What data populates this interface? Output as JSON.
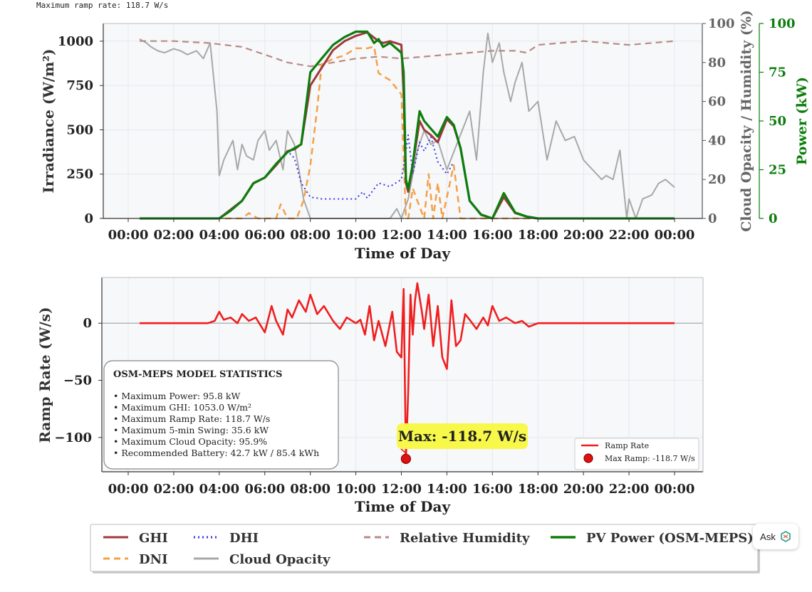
{
  "header": {
    "text": "Maximum ramp rate: 118.7 W/s"
  },
  "ask_button": {
    "label": "Ask"
  },
  "colors": {
    "ghi": "#a0383c",
    "dni": "#f5a046",
    "dhi": "#3a3ae0",
    "cloud": "#a8a8a8",
    "humidity": "#b98a85",
    "power": "#0d7d0d",
    "ramp": "#f01e1e",
    "highlight": "#f8f84a"
  },
  "chart_data": [
    {
      "type": "line",
      "xlabel": "Time of Day",
      "ylabel": "Irradiance (W/m²)",
      "ylabel2": "Cloud Opacity / Humidity (%)",
      "ylabel3": "Power (kW)",
      "xticks": [
        "00:00",
        "02:00",
        "04:00",
        "06:00",
        "08:00",
        "10:00",
        "12:00",
        "14:00",
        "16:00",
        "18:00",
        "20:00",
        "22:00",
        "00:00"
      ],
      "yticks": [
        "0",
        "250",
        "500",
        "750",
        "1000"
      ],
      "yticks2": [
        "0",
        "20",
        "40",
        "60",
        "80",
        "100"
      ],
      "yticks3": [
        "0",
        "25",
        "50",
        "75",
        "100"
      ],
      "ylim": [
        0,
        1100
      ],
      "ylim2": [
        0,
        100
      ],
      "ylim3": [
        0,
        100
      ],
      "series": [
        {
          "name": "GHI",
          "key": "ghi",
          "axis": "left",
          "x": [
            0.5,
            3.5,
            4.0,
            4.5,
            5.0,
            5.5,
            6.0,
            6.5,
            7.0,
            7.3,
            7.6,
            8.0,
            8.5,
            9.0,
            9.5,
            10.0,
            10.5,
            10.8,
            11.0,
            11.2,
            11.5,
            12.0,
            12.1,
            12.2,
            12.3,
            12.5,
            12.8,
            13.0,
            13.3,
            13.6,
            14.0,
            14.3,
            14.6,
            15.0,
            15.5,
            16.0,
            16.5,
            17.0,
            17.5,
            18.0,
            24.0
          ],
          "y": [
            0,
            0,
            0,
            50,
            100,
            200,
            230,
            300,
            380,
            390,
            420,
            750,
            850,
            950,
            1000,
            1030,
            1050,
            1020,
            1000,
            990,
            1000,
            980,
            700,
            200,
            150,
            300,
            550,
            500,
            470,
            430,
            560,
            520,
            400,
            100,
            20,
            0,
            120,
            30,
            10,
            0,
            0
          ]
        },
        {
          "name": "DNI",
          "key": "dni",
          "axis": "left",
          "x": [
            0.5,
            5.0,
            5.3,
            5.7,
            6.0,
            6.5,
            6.7,
            7.0,
            7.4,
            7.7,
            8.0,
            8.3,
            8.5,
            9.0,
            9.5,
            10.0,
            10.5,
            10.8,
            11.0,
            11.5,
            12.0,
            12.2,
            12.3,
            12.5,
            12.7,
            13.0,
            13.2,
            13.4,
            13.6,
            13.8,
            14.0,
            14.3,
            14.6,
            15.0,
            24.0
          ],
          "y": [
            0,
            0,
            30,
            0,
            0,
            0,
            80,
            0,
            0,
            100,
            300,
            620,
            870,
            900,
            920,
            960,
            960,
            970,
            820,
            780,
            700,
            0,
            0,
            170,
            100,
            0,
            250,
            0,
            200,
            0,
            120,
            300,
            0,
            0,
            0
          ]
        },
        {
          "name": "DHI",
          "key": "dhi",
          "axis": "left",
          "x": [
            6.5,
            7.0,
            7.3,
            7.6,
            8.0,
            8.3,
            8.5,
            9.0,
            9.5,
            10.0,
            10.3,
            10.5,
            11.0,
            11.5,
            12.0,
            12.2,
            12.3,
            12.5,
            12.8,
            13.0,
            13.3,
            13.6,
            14.0,
            14.3
          ],
          "y": [
            300,
            380,
            340,
            200,
            120,
            115,
            110,
            110,
            110,
            110,
            150,
            115,
            200,
            180,
            220,
            380,
            470,
            250,
            430,
            380,
            460,
            320,
            250,
            320
          ]
        },
        {
          "name": "Cloud Opacity",
          "key": "cloud",
          "axis": "right",
          "x": [
            0.5,
            0.8,
            1.0,
            1.3,
            1.6,
            2.0,
            2.3,
            2.6,
            3.0,
            3.3,
            3.6,
            3.9,
            4.0,
            4.2,
            4.4,
            4.6,
            4.8,
            5.0,
            5.2,
            5.5,
            5.7,
            6.0,
            6.2,
            6.5,
            6.8,
            7.0,
            7.3,
            7.5,
            7.7,
            8.0,
            8.5,
            9.0,
            9.5,
            10.0,
            10.5,
            11.0,
            11.5,
            11.8,
            12.0,
            12.3,
            12.7,
            13.0,
            13.3,
            13.6,
            14.0,
            14.5,
            15.0,
            15.3,
            15.6,
            15.8,
            16.0,
            16.3,
            16.5,
            16.8,
            17.0,
            17.3,
            17.6,
            18.0,
            18.4,
            18.8,
            19.2,
            19.6,
            20.0,
            20.4,
            20.8,
            21.0,
            21.3,
            21.6,
            21.9,
            22.0,
            22.3,
            22.6,
            23.0,
            23.3,
            23.6,
            24.0
          ],
          "y": [
            92,
            90,
            88,
            86,
            85,
            87,
            86,
            84,
            86,
            82,
            90,
            55,
            22,
            30,
            35,
            40,
            25,
            38,
            32,
            30,
            40,
            45,
            35,
            40,
            25,
            45,
            38,
            25,
            10,
            0,
            0,
            0,
            0,
            0,
            0,
            0,
            0,
            5,
            0,
            10,
            35,
            45,
            38,
            40,
            25,
            40,
            55,
            30,
            75,
            95,
            80,
            90,
            75,
            60,
            70,
            80,
            55,
            60,
            30,
            50,
            40,
            42,
            30,
            25,
            20,
            22,
            20,
            35,
            0,
            10,
            0,
            10,
            12,
            18,
            20,
            16
          ]
        },
        {
          "name": "Relative Humidity",
          "key": "humidity",
          "axis": "right",
          "x": [
            0.5,
            2.0,
            3.5,
            5.0,
            6.0,
            7.0,
            8.0,
            9.0,
            10.0,
            11.0,
            12.0,
            13.0,
            14.0,
            15.0,
            16.0,
            17.0,
            17.5,
            18.0,
            19.0,
            20.0,
            21.0,
            22.0,
            23.0,
            24.0
          ],
          "y": [
            91,
            91,
            90,
            88,
            84,
            80,
            78,
            80,
            82,
            83,
            82,
            83,
            84,
            85,
            86,
            86,
            85,
            89,
            90,
            91,
            90,
            89,
            90,
            91
          ]
        },
        {
          "name": "PV Power (OSM-MEPS)",
          "key": "power",
          "axis": "power",
          "x": [
            0.5,
            3.5,
            4.0,
            4.5,
            5.0,
            5.5,
            6.0,
            6.5,
            7.0,
            7.3,
            7.6,
            8.0,
            8.5,
            9.0,
            9.5,
            10.0,
            10.5,
            10.8,
            11.0,
            11.2,
            11.5,
            12.0,
            12.1,
            12.2,
            12.3,
            12.5,
            12.8,
            13.0,
            13.3,
            13.6,
            14.0,
            14.3,
            14.6,
            15.0,
            15.5,
            16.0,
            16.5,
            17.0,
            17.5,
            18.0,
            24.0
          ],
          "y": [
            0,
            0,
            0,
            4,
            9,
            18,
            21,
            28,
            34,
            36,
            38,
            75,
            82,
            89,
            93,
            95.8,
            95.8,
            90,
            92,
            88,
            90,
            85,
            75,
            20,
            15,
            28,
            55,
            50,
            46,
            42,
            52,
            48,
            36,
            9,
            2,
            0,
            13,
            3,
            1,
            0,
            0
          ]
        }
      ]
    },
    {
      "type": "line",
      "xlabel": "Time of Day",
      "ylabel": "Ramp Rate (W/s)",
      "xticks": [
        "00:00",
        "02:00",
        "04:00",
        "06:00",
        "08:00",
        "10:00",
        "12:00",
        "14:00",
        "16:00",
        "18:00",
        "20:00",
        "22:00",
        "00:00"
      ],
      "yticks": [
        "0",
        "−50",
        "−100"
      ],
      "ylim": [
        -130,
        40
      ],
      "series": [
        {
          "name": "Ramp Rate",
          "key": "ramp",
          "x": [
            0.5,
            3.5,
            3.8,
            4.0,
            4.2,
            4.5,
            4.8,
            5.0,
            5.3,
            5.6,
            6.0,
            6.3,
            6.5,
            6.8,
            7.0,
            7.2,
            7.5,
            7.8,
            8.0,
            8.3,
            8.6,
            9.0,
            9.3,
            9.6,
            10.0,
            10.2,
            10.4,
            10.6,
            10.8,
            11.0,
            11.3,
            11.6,
            11.8,
            12.0,
            12.1,
            12.2,
            12.3,
            12.4,
            12.5,
            12.6,
            12.7,
            12.9,
            13.0,
            13.2,
            13.4,
            13.6,
            13.8,
            14.0,
            14.2,
            14.4,
            14.6,
            14.8,
            15.0,
            15.3,
            15.6,
            15.8,
            16.0,
            16.3,
            16.6,
            17.0,
            17.3,
            17.6,
            18.0,
            24.0
          ],
          "y": [
            0,
            0,
            2,
            10,
            3,
            5,
            0,
            8,
            2,
            5,
            -8,
            15,
            2,
            -10,
            12,
            5,
            20,
            10,
            25,
            8,
            15,
            2,
            -5,
            5,
            0,
            3,
            -10,
            15,
            -15,
            2,
            -20,
            10,
            -25,
            -30,
            30,
            -118.7,
            -60,
            25,
            -10,
            20,
            35,
            10,
            -5,
            25,
            -20,
            15,
            -30,
            -40,
            20,
            -20,
            -15,
            8,
            3,
            -5,
            5,
            -2,
            15,
            2,
            5,
            0,
            2,
            -3,
            0,
            0
          ]
        }
      ],
      "annotation": {
        "text": "Max: -118.7 W/s",
        "x": 12.2,
        "y": -118.7
      },
      "legend": {
        "position": "lower-right",
        "items": [
          "Ramp Rate",
          "Max Ramp: -118.7 W/s"
        ]
      },
      "stats_box": {
        "title": "OSM-MEPS MODEL STATISTICS",
        "items": [
          "• Maximum Power: 95.8 kW",
          "• Maximum GHI: 1053.0 W/m²",
          "• Maximum Ramp Rate: 118.7 W/s",
          "• Maximum 5-min Swing: 35.6 kW",
          "• Maximum Cloud Opacity: 95.9%",
          "• Recommended Battery: 42.7 kW / 85.4 kWh"
        ]
      }
    }
  ],
  "bottom_legend": {
    "items": [
      {
        "label": "GHI",
        "key": "ghi",
        "dash": "solid"
      },
      {
        "label": "DHI",
        "key": "dhi",
        "dash": "dotted"
      },
      {
        "label": "Relative Humidity",
        "key": "humidity",
        "dash": "dashed"
      },
      {
        "label": "PV Power (OSM-MEPS)",
        "key": "power",
        "dash": "solid"
      },
      {
        "label": "DNI",
        "key": "dni",
        "dash": "dashed"
      },
      {
        "label": "Cloud Opacity",
        "key": "cloud",
        "dash": "solid"
      }
    ]
  }
}
